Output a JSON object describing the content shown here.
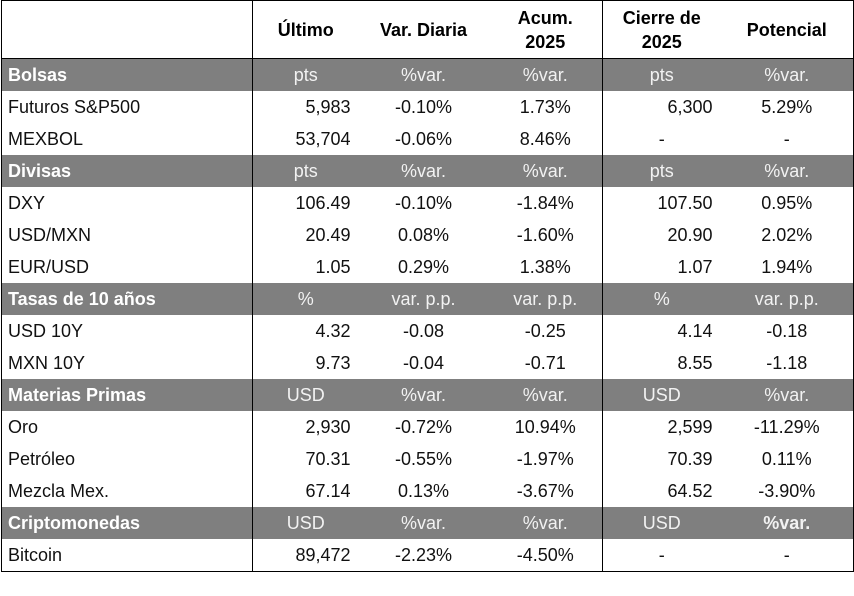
{
  "headers": [
    "",
    "Último",
    "Var. Diaria",
    "Acum.\n2025",
    "Cierre de\n2025",
    "Potencial"
  ],
  "sections": [
    {
      "name": "Bolsas",
      "units": [
        "pts",
        "%var.",
        "%var.",
        "pts",
        "%var."
      ],
      "rows": [
        {
          "name": "Futuros S&P500",
          "last": "5,983",
          "daily": "-0.10%",
          "ytd": "1.73%",
          "close": "6,300",
          "potential": "5.29%"
        },
        {
          "name": "MEXBOL",
          "last": "53,704",
          "daily": "-0.06%",
          "ytd": "8.46%",
          "close": "-",
          "potential": "-"
        }
      ]
    },
    {
      "name": "Divisas",
      "units": [
        "pts",
        "%var.",
        "%var.",
        "pts",
        "%var."
      ],
      "rows": [
        {
          "name": "DXY",
          "last": "106.49",
          "daily": "-0.10%",
          "ytd": "-1.84%",
          "close": "107.50",
          "potential": "0.95%"
        },
        {
          "name": "USD/MXN",
          "last": "20.49",
          "daily": "0.08%",
          "ytd": "-1.60%",
          "close": "20.90",
          "potential": "2.02%"
        },
        {
          "name": "EUR/USD",
          "last": "1.05",
          "daily": "0.29%",
          "ytd": "1.38%",
          "close": "1.07",
          "potential": "1.94%"
        }
      ]
    },
    {
      "name": "Tasas de 10 años",
      "units": [
        "%",
        "var. p.p.",
        "var. p.p.",
        "%",
        "var. p.p."
      ],
      "rows": [
        {
          "name": "USD 10Y",
          "last": "4.32",
          "daily": "-0.08",
          "ytd": "-0.25",
          "close": "4.14",
          "potential": "-0.18"
        },
        {
          "name": "MXN 10Y",
          "last": "9.73",
          "daily": "-0.04",
          "ytd": "-0.71",
          "close": "8.55",
          "potential": "-1.18"
        }
      ]
    },
    {
      "name": "Materias Primas",
      "units": [
        "USD",
        "%var.",
        "%var.",
        "USD",
        "%var."
      ],
      "rows": [
        {
          "name": "Oro",
          "last": "2,930",
          "daily": "-0.72%",
          "ytd": "10.94%",
          "close": "2,599",
          "potential": "-11.29%"
        },
        {
          "name": "Petróleo",
          "last": "70.31",
          "daily": "-0.55%",
          "ytd": "-1.97%",
          "close": "70.39",
          "potential": "0.11%"
        },
        {
          "name": "Mezcla Mex.",
          "last": "67.14",
          "daily": "0.13%",
          "ytd": "-3.67%",
          "close": "64.52",
          "potential": "-3.90%"
        }
      ]
    },
    {
      "name": "Criptomonedas",
      "units": [
        "USD",
        "%var.",
        "%var.",
        "USD",
        "%var."
      ],
      "rows": [
        {
          "name": "Bitcoin",
          "last": "89,472",
          "daily": "-2.23%",
          "ytd": "-4.50%",
          "close": "-",
          "potential": "-"
        }
      ]
    }
  ],
  "colors": {
    "section_bg": "#7f7f7f",
    "negative": "#ff0000",
    "positive": "#00b050"
  }
}
